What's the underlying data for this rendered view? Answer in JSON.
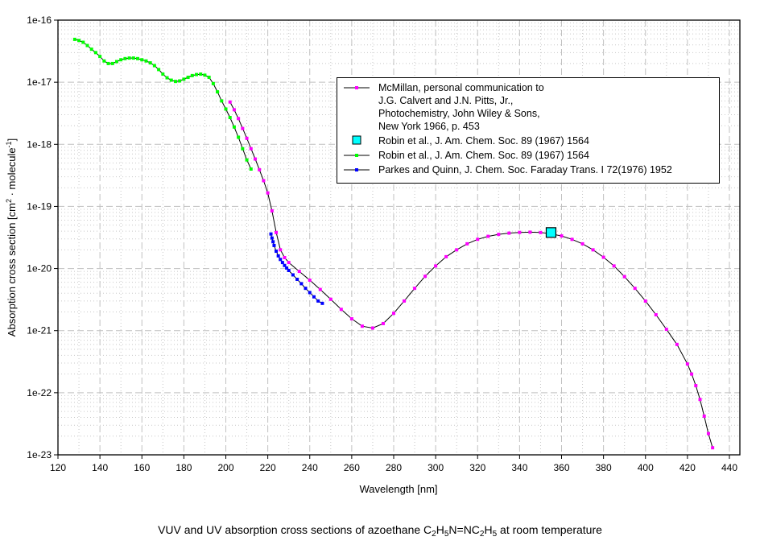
{
  "chart_data": {
    "type": "line",
    "title": "VUV and UV absorption cross sections of azoethane C2H5N=NC2H5 at room temperature",
    "caption": {
      "prefix": "VUV and UV absorption cross sections of azoethane C",
      "s1": "2",
      "p1": "H",
      "s2": "5",
      "p2": "N=NC",
      "s3": "2",
      "p3": "H",
      "s4": "5",
      "suffix": " at room temperature"
    },
    "xlabel": "Wavelength [nm]",
    "ylabel": {
      "prefix": "Absorption cross section [cm",
      "sup1": "2",
      "mid": " · molecule",
      "sup2": "-1",
      "suffix": "]"
    },
    "xlim": [
      120,
      440
    ],
    "ylim": [
      1e-23,
      1e-16
    ],
    "yscale": "log",
    "grid": true,
    "legend_position": "top-right",
    "x_ticks": [
      "120",
      "140",
      "160",
      "180",
      "200",
      "220",
      "240",
      "260",
      "280",
      "300",
      "320",
      "340",
      "360",
      "380",
      "400",
      "420",
      "440"
    ],
    "y_ticks": [
      "1e-16",
      "1e-17",
      "1e-18",
      "1e-19",
      "1e-20",
      "1e-21",
      "1e-22",
      "1e-23"
    ],
    "series": [
      {
        "name": "McMillan, personal communication to J.G. Calvert and J.N. Pitts, Jr., Photochemistry, John Wiley & Sons, New York 1966, p. 453",
        "legend_lines": [
          "McMillan, personal communication to",
          "J.G. Calvert and J.N. Pitts, Jr.,",
          "Photochemistry, John Wiley & Sons,",
          "New York 1966, p. 453"
        ],
        "color": "#ff00ff",
        "marker": "dot",
        "x": [
          202,
          204,
          206,
          208,
          210,
          212,
          214,
          216,
          218,
          220,
          222,
          224,
          226,
          228,
          230,
          235,
          240,
          245,
          250,
          255,
          260,
          265,
          270,
          275,
          280,
          285,
          290,
          295,
          300,
          305,
          310,
          315,
          320,
          325,
          330,
          335,
          340,
          345,
          350,
          355,
          360,
          365,
          370,
          375,
          380,
          385,
          390,
          395,
          400,
          405,
          410,
          415,
          420,
          422,
          424,
          426,
          428,
          430,
          432
        ],
        "y": [
          4.8e-18,
          3.6e-18,
          2.6e-18,
          1.8e-18,
          1.25e-18,
          8.5e-19,
          5.8e-19,
          3.9e-19,
          2.6e-19,
          1.65e-19,
          8.5e-20,
          3.8e-20,
          2e-20,
          1.5e-20,
          1.25e-20,
          9e-21,
          6.5e-21,
          4.6e-21,
          3.2e-21,
          2.2e-21,
          1.55e-21,
          1.18e-21,
          1.1e-21,
          1.3e-21,
          1.9e-21,
          3e-21,
          4.8e-21,
          7.5e-21,
          1.1e-20,
          1.55e-20,
          2e-20,
          2.5e-20,
          2.95e-20,
          3.3e-20,
          3.55e-20,
          3.72e-20,
          3.82e-20,
          3.85e-20,
          3.8e-20,
          3.62e-20,
          3.35e-20,
          2.95e-20,
          2.5e-20,
          2e-20,
          1.52e-20,
          1.1e-20,
          7.4e-21,
          4.8e-21,
          3e-21,
          1.8e-21,
          1.05e-21,
          6e-22,
          2.9e-22,
          2e-22,
          1.3e-22,
          7.8e-23,
          4.2e-23,
          2.2e-23,
          1.3e-23
        ]
      },
      {
        "name": "Robin et al., J. Am. Chem. Soc. 89 (1967) 1564",
        "legend_label": "Robin et al., J. Am. Chem. Soc. 89 (1967) 1564",
        "color": "#00ffff",
        "marker": "square",
        "x": [
          355
        ],
        "y": [
          3.8e-20
        ]
      },
      {
        "name": "Robin et al., J. Am. Chem. Soc. 89 (1967) 1564",
        "legend_label": "Robin et al., J. Am. Chem. Soc. 89 (1967) 1564",
        "color": "#00ff00",
        "marker": "dot",
        "x": [
          128,
          130,
          132,
          134,
          136,
          138,
          140,
          142,
          144,
          146,
          148,
          150,
          152,
          154,
          156,
          158,
          160,
          162,
          164,
          166,
          168,
          170,
          172,
          174,
          176,
          178,
          180,
          182,
          184,
          186,
          188,
          190,
          192,
          194,
          196,
          198,
          200,
          202,
          204,
          206,
          208,
          210,
          212
        ],
        "y": [
          4.9e-17,
          4.7e-17,
          4.4e-17,
          3.9e-17,
          3.4e-17,
          3e-17,
          2.6e-17,
          2.2e-17,
          2e-17,
          2e-17,
          2.15e-17,
          2.3e-17,
          2.4e-17,
          2.45e-17,
          2.45e-17,
          2.4e-17,
          2.3e-17,
          2.2e-17,
          2.05e-17,
          1.85e-17,
          1.6e-17,
          1.35e-17,
          1.18e-17,
          1.08e-17,
          1.03e-17,
          1.05e-17,
          1.12e-17,
          1.2e-17,
          1.28e-17,
          1.33e-17,
          1.35e-17,
          1.3e-17,
          1.2e-17,
          9.5e-18,
          7e-18,
          5e-18,
          3.7e-18,
          2.7e-18,
          1.9e-18,
          1.3e-18,
          8.5e-19,
          5.6e-19,
          4e-19
        ]
      },
      {
        "name": "Parkes and Quinn, J. Chem. Soc. Faraday Trans. I 72(1976) 1952",
        "legend_label": "Parkes and Quinn, J. Chem. Soc. Faraday Trans. I 72(1976) 1952",
        "color": "#0000ff",
        "marker": "dot",
        "x": [
          221.5,
          222,
          222.5,
          223,
          224,
          225,
          226,
          227,
          228,
          229,
          230,
          232,
          234,
          236,
          238,
          240,
          242,
          244,
          246
        ],
        "y": [
          3.6e-20,
          3.1e-20,
          2.7e-20,
          2.35e-20,
          1.9e-20,
          1.6e-20,
          1.4e-20,
          1.25e-20,
          1.12e-20,
          1.02e-20,
          9.3e-21,
          7.9e-21,
          6.7e-21,
          5.7e-21,
          4.8e-21,
          4.1e-21,
          3.5e-21,
          3e-21,
          2.75e-21
        ]
      }
    ]
  }
}
